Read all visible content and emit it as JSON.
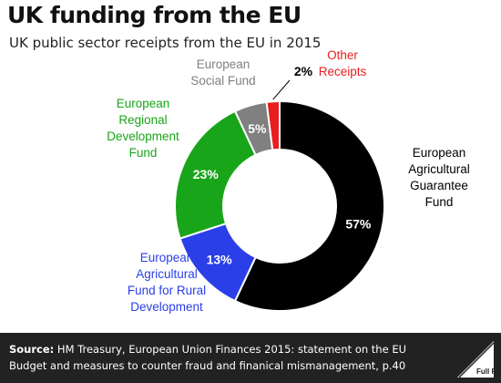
{
  "title": "UK funding from the EU",
  "subtitle": "UK public sector receipts from the EU in 2015",
  "footer": {
    "source_label": "Source:",
    "source_text": "HM Treasury, European Union Finances 2015: statement on the EU Budget and measures to counter fraud and finanical mismanagement, p.40"
  },
  "logo_text": "Full Fact",
  "chart_data": {
    "type": "pie",
    "donut": true,
    "title": "UK funding from the EU",
    "subtitle": "UK public sector receipts from the EU in 2015",
    "slices": [
      {
        "label": [
          "European",
          "Agricultural",
          "Guarantee",
          "Fund"
        ],
        "value": 57,
        "display": "57%",
        "color": "#000000",
        "label_color": "#000000"
      },
      {
        "label": [
          "European",
          "Agricultural",
          "Fund for Rural",
          "Development"
        ],
        "value": 13,
        "display": "13%",
        "color": "#2a3fe8",
        "label_color": "#2a3fe8"
      },
      {
        "label": [
          "European",
          "Regional",
          "Development",
          "Fund"
        ],
        "value": 23,
        "display": "23%",
        "color": "#19a519",
        "label_color": "#19a519"
      },
      {
        "label": [
          "European",
          "Social Fund"
        ],
        "value": 5,
        "display": "5%",
        "color": "#808080",
        "label_color": "#808080"
      },
      {
        "label": [
          "Other",
          "Receipts"
        ],
        "value": 2,
        "display": "2%",
        "color": "#e81e1e",
        "label_color": "#e81e1e"
      }
    ]
  }
}
